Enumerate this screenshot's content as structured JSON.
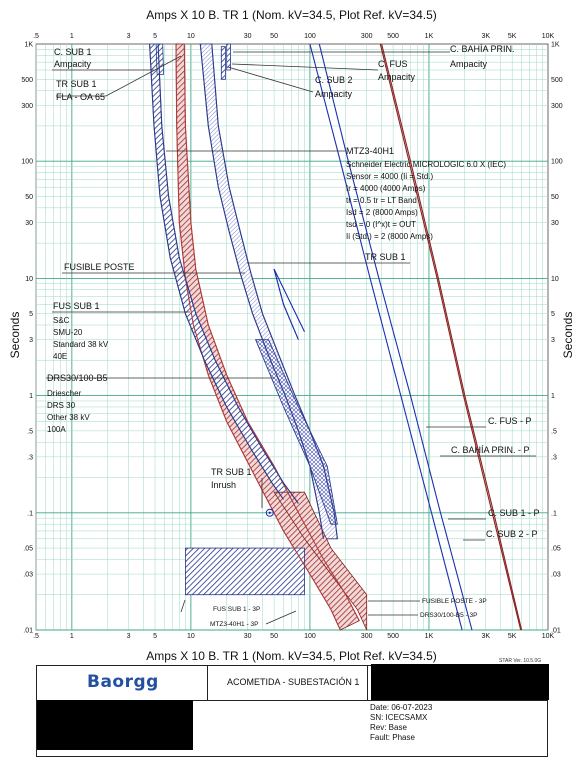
{
  "chart_data": {
    "type": "time-current-curve",
    "title": "Amps  X  10   B. TR 1 (Nom. kV=34.5, Plot Ref. kV=34.5)",
    "xlabel": "Amps  X  10   B. TR 1 (Nom. kV=34.5, Plot Ref. kV=34.5)",
    "ylabel": "Seconds",
    "xscale": "log",
    "yscale": "log",
    "xlim": [
      0.5,
      10000
    ],
    "ylim": [
      0.01,
      1000
    ],
    "grid": true,
    "x_ticks": [
      {
        "v": 0.5,
        "t": ".5"
      },
      {
        "v": 1,
        "t": "1"
      },
      {
        "v": 3,
        "t": "3"
      },
      {
        "v": 5,
        "t": "5"
      },
      {
        "v": 10,
        "t": "10"
      },
      {
        "v": 30,
        "t": "30"
      },
      {
        "v": 50,
        "t": "50"
      },
      {
        "v": 100,
        "t": "100"
      },
      {
        "v": 300,
        "t": "300"
      },
      {
        "v": 500,
        "t": "500"
      },
      {
        "v": 1000,
        "t": "1K"
      },
      {
        "v": 3000,
        "t": "3K"
      },
      {
        "v": 5000,
        "t": "5K"
      },
      {
        "v": 10000,
        "t": "10K"
      }
    ],
    "y_ticks": [
      {
        "v": 1000,
        "t": "1K"
      },
      {
        "v": 500,
        "t": "500"
      },
      {
        "v": 300,
        "t": "300"
      },
      {
        "v": 100,
        "t": "100"
      },
      {
        "v": 50,
        "t": "50"
      },
      {
        "v": 30,
        "t": "30"
      },
      {
        "v": 10,
        "t": "10"
      },
      {
        "v": 5,
        "t": "5"
      },
      {
        "v": 3,
        "t": "3"
      },
      {
        "v": 1,
        "t": "1"
      },
      {
        "v": 0.5,
        "t": ".5"
      },
      {
        "v": 0.3,
        "t": ".3"
      },
      {
        "v": 0.1,
        "t": ".1"
      },
      {
        "v": 0.05,
        "t": ".05"
      },
      {
        "v": 0.03,
        "t": ".03"
      },
      {
        "v": 0.01,
        "t": ".01"
      }
    ],
    "series": [
      {
        "name": "FUSIBLE POSTE",
        "color": "#b23a3a",
        "points": [
          [
            8.8,
            1000
          ],
          [
            9,
            200
          ],
          [
            10,
            30
          ],
          [
            11,
            12
          ],
          [
            14,
            4
          ],
          [
            20,
            1.5
          ],
          [
            30,
            0.6
          ],
          [
            50,
            0.25
          ],
          [
            80,
            0.1
          ],
          [
            130,
            0.04
          ],
          [
            200,
            0.02
          ],
          [
            260,
            0.012
          ]
        ]
      },
      {
        "name": "FUSIBLE POSTE",
        "color": "#b23a3a",
        "points": [
          [
            7.5,
            1000
          ],
          [
            7.6,
            200
          ],
          [
            8,
            30
          ],
          [
            9,
            10
          ],
          [
            10.5,
            4
          ],
          [
            14,
            1.5
          ],
          [
            20,
            0.6
          ],
          [
            35,
            0.2
          ],
          [
            60,
            0.07
          ],
          [
            100,
            0.03
          ],
          [
            150,
            0.015
          ],
          [
            180,
            0.01
          ]
        ]
      },
      {
        "name": "FUS SUB 1",
        "color": "#2b3a8c",
        "points": [
          [
            5.3,
            1000
          ],
          [
            5.7,
            200
          ],
          [
            6.5,
            50
          ],
          [
            8,
            15
          ],
          [
            11,
            5
          ],
          [
            16,
            2
          ],
          [
            25,
            0.8
          ],
          [
            40,
            0.35
          ],
          [
            60,
            0.18
          ],
          [
            80,
            0.12
          ]
        ]
      },
      {
        "name": "FUS SUB 1",
        "color": "#2b3a8c",
        "points": [
          [
            4.5,
            1000
          ],
          [
            4.9,
            200
          ],
          [
            5.5,
            50
          ],
          [
            6.7,
            15
          ],
          [
            9,
            5
          ],
          [
            13,
            2
          ],
          [
            20,
            0.8
          ],
          [
            32,
            0.35
          ],
          [
            48,
            0.18
          ],
          [
            60,
            0.13
          ]
        ]
      },
      {
        "name": "MTZ3-40H1",
        "color": "#2b3a8c",
        "points": [
          [
            12,
            1000
          ],
          [
            14,
            200
          ],
          [
            17,
            60
          ],
          [
            21,
            25
          ],
          [
            26,
            11
          ],
          [
            33,
            5
          ],
          [
            45,
            2.2
          ],
          [
            62,
            1
          ],
          [
            80,
            0.5
          ],
          [
            100,
            0.25
          ],
          [
            120,
            0.1
          ],
          [
            130,
            0.06
          ]
        ]
      },
      {
        "name": "MTZ3-40H1",
        "color": "#2b3a8c",
        "points": [
          [
            15,
            1000
          ],
          [
            17,
            200
          ],
          [
            21,
            60
          ],
          [
            26,
            25
          ],
          [
            32,
            11
          ],
          [
            40,
            5
          ],
          [
            55,
            2.2
          ],
          [
            75,
            1
          ],
          [
            100,
            0.5
          ],
          [
            130,
            0.25
          ],
          [
            160,
            0.1
          ],
          [
            170,
            0.06
          ]
        ]
      },
      {
        "name": "C. FUS - P",
        "color": "#8a2020",
        "points": [
          [
            400,
            1000
          ],
          [
            700,
            100
          ],
          [
            1200,
            10
          ],
          [
            2000,
            1
          ],
          [
            3500,
            0.1
          ],
          [
            6000,
            0.01
          ]
        ]
      },
      {
        "name": "C. BAHÍA PRIN. - P",
        "color": "#8a2020",
        "points": [
          [
            390,
            1000
          ],
          [
            680,
            100
          ],
          [
            1170,
            10
          ],
          [
            1950,
            1
          ],
          [
            3400,
            0.1
          ],
          [
            5900,
            0.01
          ]
        ]
      },
      {
        "name": "C. SUB 1 - P",
        "color": "#1a2fb0",
        "points": [
          [
            120,
            1000
          ],
          [
            210,
            100
          ],
          [
            380,
            10
          ],
          [
            700,
            1
          ],
          [
            1250,
            0.1
          ],
          [
            2300,
            0.01
          ]
        ]
      },
      {
        "name": "C. SUB 2 - P",
        "color": "#1a2fb0",
        "points": [
          [
            100,
            1000
          ],
          [
            180,
            100
          ],
          [
            320,
            10
          ],
          [
            580,
            1
          ],
          [
            1050,
            0.1
          ],
          [
            1900,
            0.01
          ]
        ]
      },
      {
        "name": "TR SUB 1",
        "color": "#1a2fb0",
        "points": [
          [
            50,
            12
          ],
          [
            60,
            6
          ],
          [
            80,
            3
          ]
        ]
      },
      {
        "name": "TR SUB 1",
        "color": "#1a2fb0",
        "points": [
          [
            50,
            12
          ],
          [
            90,
            3.5
          ]
        ]
      }
    ],
    "inrush_point": {
      "name": "TR SUB 1 Inrush",
      "x": 46,
      "y": 0.1
    }
  },
  "labels": {
    "c_sub1": "C. SUB 1",
    "c_sub1_amp": "Ampacity",
    "tr_sub1": "TR SUB 1",
    "tr_sub1_fla": "FLA - OA 65",
    "c_bahia": "C. BAHÍA PRIN.",
    "c_bahia_amp": "Ampacity",
    "c_fus": "C. FUS",
    "c_fus_amp": "Ampacity",
    "c_sub2": "C. SUB 2",
    "c_sub2_amp": "Ampacity",
    "mtz": "MTZ3-40H1",
    "mtz_l1": "Schneider Electric  MICROLOGIC 6.0 X (IEC)",
    "mtz_l2": "Sensor = 4000 (Ii = Std.)",
    "mtz_l3": "Ir = 4000 (4000 Amps)",
    "mtz_l4": "tr = 0.5  tr = LT Band",
    "mtz_l5": "Isd = 2 (8000 Amps)",
    "mtz_l6": "tsd = 0  (I^x)t = OUT",
    "mtz_l7": "Ii (Std.)  = 2 (8000 Amps)",
    "fusible_poste": "FUSIBLE POSTE",
    "tr_sub1_right": "TR SUB 1",
    "fus_sub1": "FUS SUB 1",
    "fus_l1": "S&C",
    "fus_l2": "SMU-20",
    "fus_l3": "Standard  38 kV",
    "fus_l4": "40E",
    "drs": "DRS30/100-B5",
    "drs_l1": "Driescher",
    "drs_l2": "DRS 30",
    "drs_l3": "Other  38 kV",
    "drs_l4": "100A",
    "cfus_p": "C. FUS - P",
    "cbahia_p": "C. BAHÍA PRIN. - P",
    "csub1_p": "C. SUB 1 - P",
    "csub2_p": "C. SUB 2 - P",
    "inrush1": "TR SUB 1",
    "inrush2": "Inrush",
    "fus_3p": "FUS SUB 1 - 3P",
    "mtz_3p": "MTZ3-40H1 - 3P",
    "fusposte_3p": "FUSIBLE POSTE - 3P",
    "drs_3p": "DRS30/100-B5 - 3P"
  },
  "titleblock": {
    "logo": "Baorgg",
    "title": "ACOMETIDA - SUBESTACIÓN 1",
    "star": "STAR Ver. 10.5.0G",
    "date": "Date:  06-07-2023",
    "sn": "SN:    ICECSAMX",
    "rev": "Rev:   Base",
    "fault": "Fault: Phase"
  }
}
